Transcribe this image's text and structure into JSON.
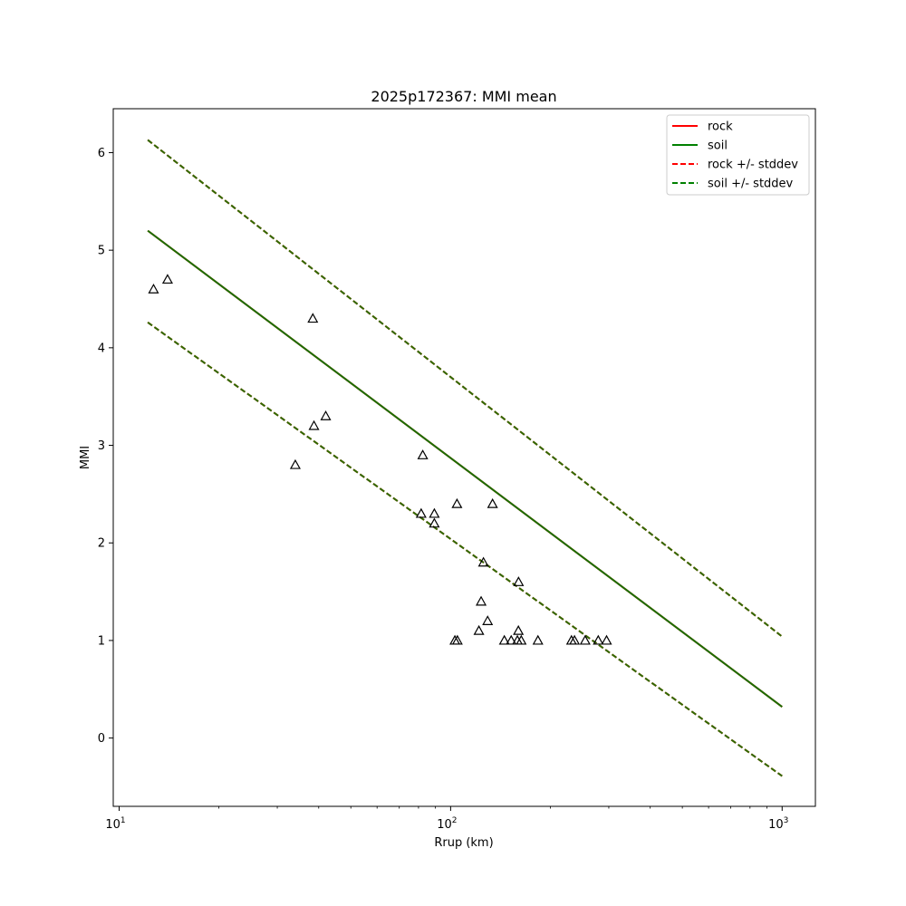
{
  "chart_data": {
    "type": "scatter",
    "title": "2025p172367: MMI mean",
    "xlabel": "Rrup (km)",
    "ylabel": "MMI",
    "xscale": "log",
    "xlim": [
      9.6,
      1260
    ],
    "ylim": [
      -0.7,
      6.45
    ],
    "x_ticks": [
      {
        "value": 10,
        "base": "10",
        "exp": "1"
      },
      {
        "value": 100,
        "base": "10",
        "exp": "2"
      },
      {
        "value": 1000,
        "base": "10",
        "exp": "3"
      }
    ],
    "y_ticks": [
      0,
      1,
      2,
      3,
      4,
      5,
      6
    ],
    "grid": false,
    "legend_position": "top-right",
    "legend": [
      {
        "label": "rock",
        "color": "#ff0000",
        "style": "solid"
      },
      {
        "label": "soil",
        "color": "#008000",
        "style": "solid"
      },
      {
        "label": "rock +/- stddev",
        "color": "#ff0000",
        "style": "dashed"
      },
      {
        "label": "soil +/- stddev",
        "color": "#008000",
        "style": "dashed"
      }
    ],
    "series": [
      {
        "name": "rock",
        "kind": "line",
        "style": "solid",
        "color": "#ff0000",
        "x": [
          12.2,
          1000
        ],
        "y": [
          5.2,
          0.32
        ]
      },
      {
        "name": "soil",
        "kind": "line",
        "style": "solid",
        "color": "#1a6e00",
        "x": [
          12.2,
          1000
        ],
        "y": [
          5.2,
          0.32
        ]
      },
      {
        "name": "rock +/- stddev",
        "kind": "line",
        "style": "dashed",
        "color": "#ff0000",
        "x": [
          12.2,
          1000
        ],
        "y": [
          6.13,
          1.04
        ]
      },
      {
        "name": "rock +/- stddev",
        "kind": "line",
        "style": "dashed",
        "color": "#ff0000",
        "x": [
          12.2,
          1000
        ],
        "y": [
          4.26,
          -0.39
        ]
      },
      {
        "name": "soil +/- stddev",
        "kind": "line",
        "style": "dashed",
        "color": "#2e6b00",
        "x": [
          12.2,
          1000
        ],
        "y": [
          6.13,
          1.04
        ]
      },
      {
        "name": "soil +/- stddev",
        "kind": "line",
        "style": "dashed",
        "color": "#2e6b00",
        "x": [
          12.2,
          1000
        ],
        "y": [
          4.26,
          -0.39
        ]
      },
      {
        "kind": "scatter",
        "marker": "triangle",
        "color": "#000000",
        "points": [
          [
            12.7,
            4.6
          ],
          [
            14.0,
            4.7
          ],
          [
            34.0,
            2.8
          ],
          [
            38.4,
            4.3
          ],
          [
            38.7,
            3.2
          ],
          [
            42.0,
            3.3
          ],
          [
            81.5,
            2.3
          ],
          [
            82.4,
            2.9
          ],
          [
            89.3,
            2.3
          ],
          [
            89.3,
            2.2
          ],
          [
            103.0,
            1.0
          ],
          [
            104.8,
            1.0
          ],
          [
            104.5,
            2.4
          ],
          [
            121.7,
            1.1
          ],
          [
            123.6,
            1.4
          ],
          [
            125.6,
            1.8
          ],
          [
            129.3,
            1.2
          ],
          [
            133.8,
            2.4
          ],
          [
            145.2,
            1.0
          ],
          [
            152.3,
            1.0
          ],
          [
            159.0,
            1.0
          ],
          [
            160.1,
            1.1
          ],
          [
            160.3,
            1.6
          ],
          [
            163.3,
            1.0
          ],
          [
            183.4,
            1.0
          ],
          [
            231.5,
            1.0
          ],
          [
            236.4,
            1.0
          ],
          [
            254.6,
            1.0
          ],
          [
            278.8,
            1.0
          ],
          [
            295.4,
            1.0
          ]
        ]
      }
    ]
  }
}
